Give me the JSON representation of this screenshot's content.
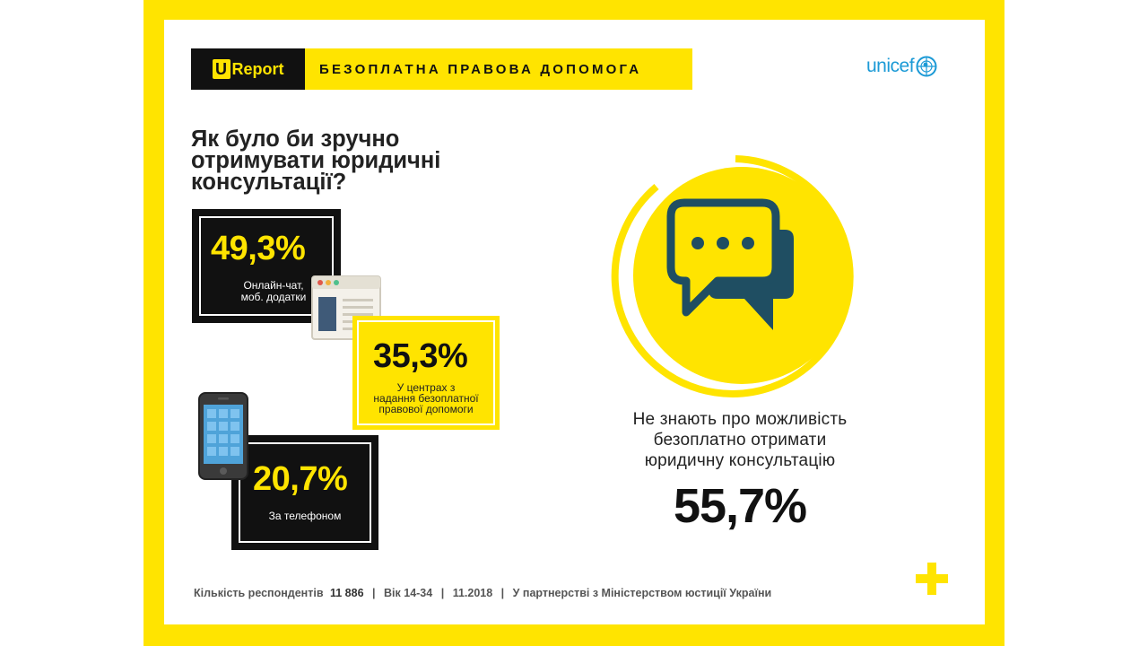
{
  "brand": {
    "logo_u": "U",
    "logo_word": "Report",
    "title": "БЕЗОПЛАТНА ПРАВОВА ДОПОМОГА",
    "partner_logo": "unicef"
  },
  "question": "Як було би зручно отримувати юридичні консультації?",
  "options": [
    {
      "percent": "49,3%",
      "label_line1": "Онлайн-чат,",
      "label_line2": "моб. додатки",
      "value": 49.3,
      "icon": "browser-window-icon"
    },
    {
      "percent": "35,3%",
      "label_line1": "У центрах з",
      "label_line2": "надання безоплатної",
      "label_line3": "правової допомоги",
      "value": 35.3
    },
    {
      "percent": "20,7%",
      "label_line1": "За телефоном",
      "value": 20.7,
      "icon": "smartphone-icon"
    }
  ],
  "highlight": {
    "text_line1": "Не знають про можливість",
    "text_line2": "безоплатно отримати",
    "text_line3": "юридичну консультацію",
    "percent": "55,7%",
    "value": 55.7,
    "icon": "chat-bubbles-icon"
  },
  "footer": {
    "respondents_label": "Кількість респондентів",
    "respondents_value": "11 886",
    "age": "Вік 14-34",
    "date": "11.2018",
    "partnership": "У партнерстві з Міністерством юстиції України",
    "separator": "|"
  },
  "colors": {
    "yellow": "#ffe400",
    "black": "#111111",
    "teal": "#1f4e62",
    "unicef_blue": "#1c9ad6"
  }
}
